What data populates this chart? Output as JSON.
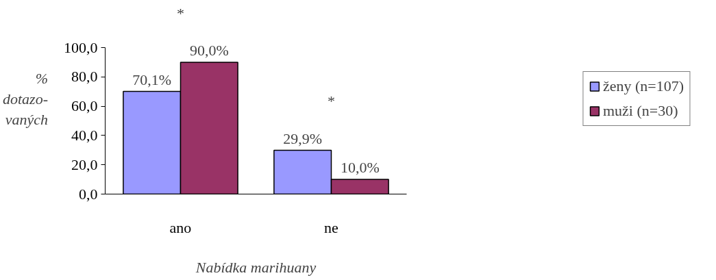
{
  "chart_data": {
    "type": "bar",
    "xlabel": "Nabídka marihuany",
    "ylabel": "%\ndotazo-\nvaných",
    "categories": [
      "ano",
      "ne"
    ],
    "series": [
      {
        "name": "ženy (n=107)",
        "color": "#9999ff",
        "values": [
          70.1,
          29.9
        ],
        "value_labels": [
          "70,1%",
          "29,9%"
        ]
      },
      {
        "name": "muži (n=30)",
        "color": "#993366",
        "values": [
          90.0,
          10.0
        ],
        "value_labels": [
          "90,0%",
          "10,0%"
        ]
      }
    ],
    "ylim": [
      0,
      100
    ],
    "yticks": [
      {
        "value": 0,
        "label": "0,0"
      },
      {
        "value": 20,
        "label": "20,0"
      },
      {
        "value": 40,
        "label": "40,0"
      },
      {
        "value": 60,
        "label": "60,0"
      },
      {
        "value": 80,
        "label": "80,0"
      },
      {
        "value": 100,
        "label": "100,0"
      }
    ],
    "annotations": [
      "*",
      "*"
    ],
    "grid": false,
    "legend": "right"
  }
}
